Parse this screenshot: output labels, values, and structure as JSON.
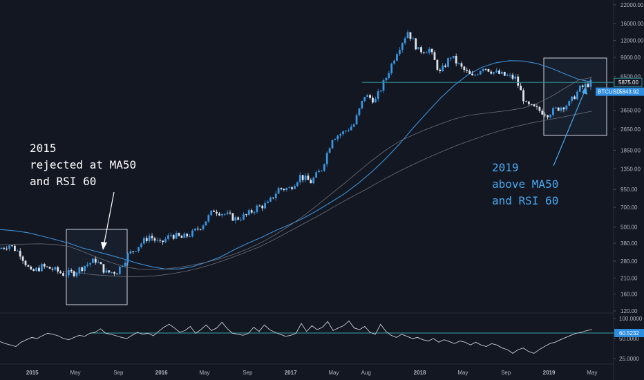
{
  "chart_data": {
    "type": "candlestick",
    "symbol": "BTCUSD",
    "scale": "log",
    "grid": false,
    "colors": {
      "background": "#131722",
      "up": "#3a94e0",
      "down": "#dfe3ea",
      "ma50": "#3d8fd4",
      "ma200": "#6a6f7a",
      "rsi": "#c9ccd3",
      "rsi_level": "#3aa6a6",
      "last_price_line": "#2f8f95",
      "blue_label": "#2d8de0",
      "annotation_white": "#ffffff",
      "annotation_blue": "#4aa8f0"
    },
    "price_axis": {
      "ticks": [
        22000,
        16000,
        12000,
        9000,
        6500,
        4850,
        3650,
        2650,
        1850,
        1350,
        950,
        700,
        500,
        380,
        280,
        210,
        160,
        120
      ],
      "tick_labels": [
        "22000.00",
        "16000.00",
        "12000.00",
        "9000.00",
        "6500.00",
        "4850.00",
        "3650.00",
        "2650.00",
        "1850.00",
        "1350.00",
        "950.00",
        "700.00",
        "500.00",
        "380.00",
        "280.00",
        "210.00",
        "160.00",
        "120.00"
      ],
      "range": [
        110,
        24000
      ]
    },
    "time_axis": {
      "labels": [
        "2015",
        "May",
        "Sep",
        "2016",
        "May",
        "Sep",
        "2017",
        "May",
        "Aug",
        "2018",
        "May",
        "Sep",
        "2019",
        "May"
      ],
      "range": [
        "2014-10",
        "2019-07"
      ]
    },
    "price_labels": [
      {
        "value": 5875.0,
        "text": "5875.00"
      },
      {
        "value": 5843.92,
        "text": "5843.92",
        "name": "BTCUSD"
      }
    ],
    "series": [
      {
        "kind": "candles",
        "x": [
          "2014-10",
          "2014-11",
          "2014-12",
          "2015-01",
          "2015-02",
          "2015-03",
          "2015-04",
          "2015-05",
          "2015-06",
          "2015-07",
          "2015-08",
          "2015-09",
          "2015-10",
          "2015-11",
          "2015-12",
          "2016-01",
          "2016-02",
          "2016-03",
          "2016-04",
          "2016-05",
          "2016-06",
          "2016-07",
          "2016-08",
          "2016-09",
          "2016-10",
          "2016-11",
          "2016-12",
          "2017-01",
          "2017-02",
          "2017-03",
          "2017-04",
          "2017-05",
          "2017-06",
          "2017-07",
          "2017-08",
          "2017-09",
          "2017-10",
          "2017-11",
          "2017-12",
          "2018-01",
          "2018-02",
          "2018-03",
          "2018-04",
          "2018-05",
          "2018-06",
          "2018-07",
          "2018-08",
          "2018-09",
          "2018-10",
          "2018-11",
          "2018-12",
          "2019-01",
          "2019-02",
          "2019-03",
          "2019-04",
          "2019-05"
        ],
        "close": [
          345,
          370,
          320,
          230,
          255,
          245,
          225,
          230,
          260,
          285,
          230,
          235,
          310,
          365,
          430,
          375,
          440,
          415,
          450,
          530,
          670,
          625,
          575,
          610,
          700,
          740,
          960,
          965,
          1190,
          1080,
          1350,
          2300,
          2500,
          2875,
          4700,
          4340,
          6400,
          10000,
          14000,
          10100,
          10300,
          6900,
          9200,
          7500,
          6400,
          7700,
          7000,
          6600,
          6300,
          4000,
          3700,
          3450,
          3800,
          4100,
          5300,
          5843.92
        ]
      },
      {
        "kind": "line",
        "name": "MA50",
        "x_range": [
          "2014-10",
          "2019-05"
        ],
        "values": [
          480,
          470,
          455,
          430,
          405,
          380,
          350,
          330,
          310,
          290,
          270,
          255,
          245,
          245,
          255,
          275,
          300,
          340,
          380,
          420,
          470,
          520,
          580,
          660,
          760,
          880,
          1050,
          1280,
          1600,
          2050,
          2700,
          3500,
          4500,
          5600,
          6700,
          7600,
          8200,
          8500,
          8450,
          8100,
          7500,
          6800,
          6200,
          5900
        ]
      },
      {
        "kind": "line",
        "name": "MA200",
        "x_range": [
          "2014-10",
          "2019-05"
        ],
        "values": [
          370,
          372,
          375,
          376,
          372,
          360,
          330,
          300,
          275,
          255,
          245,
          243,
          245,
          252,
          262,
          275,
          292,
          315,
          345,
          385,
          440,
          510,
          600,
          720,
          870,
          1050,
          1280,
          1550,
          1850,
          2150,
          2400,
          2650,
          2900,
          3150,
          3350,
          3450,
          3550,
          3650,
          3800,
          4100,
          4600,
          5300,
          6100,
          6400
        ]
      },
      {
        "kind": "line",
        "name": "MA200 (lower)",
        "x_range": [
          "2015-04",
          "2019-05"
        ],
        "values": [
          235,
          228,
          222,
          218,
          215,
          215,
          218,
          225,
          235,
          250,
          270,
          295,
          325,
          360,
          410,
          470,
          540,
          620,
          720,
          830,
          950,
          1100,
          1260,
          1430,
          1610,
          1800,
          2000,
          2200,
          2400,
          2600,
          2780,
          2950,
          3100,
          3250,
          3420,
          3600
        ]
      }
    ],
    "rsi": {
      "level_value": 60.5232,
      "level_label": "60.5232",
      "tick_values": [
        100,
        50,
        25
      ],
      "tick_labels": [
        "100.0000",
        "50.0000",
        "25.0000"
      ],
      "values": [
        45,
        42,
        40,
        38,
        44,
        48,
        52,
        50,
        55,
        60,
        58,
        55,
        50,
        48,
        52,
        56,
        54,
        60,
        62,
        70,
        60,
        58,
        55,
        52,
        50,
        56,
        62,
        58,
        60,
        55,
        64,
        74,
        82,
        72,
        62,
        66,
        76,
        60,
        68,
        80,
        66,
        72,
        88,
        70,
        60,
        58,
        56,
        60,
        74,
        64,
        80,
        68,
        62,
        58,
        54,
        56,
        60,
        84,
        64,
        78,
        68,
        74,
        90,
        66,
        72,
        78,
        92,
        72,
        68,
        76,
        62,
        58,
        82,
        64,
        56,
        52,
        58,
        54,
        50,
        52,
        48,
        46,
        50,
        44,
        48,
        45,
        42,
        46,
        44,
        40,
        44,
        40,
        38,
        42,
        40,
        36,
        34,
        30,
        34,
        36,
        32,
        30,
        34,
        38,
        42,
        44,
        48,
        52,
        56,
        60,
        62,
        66,
        68
      ]
    },
    "annotations": [
      {
        "lines": [
          "2015",
          "rejected at MA50",
          "and RSI 60"
        ],
        "color": "#ffffff"
      },
      {
        "lines": [
          "2019",
          "above MA50",
          "and RSI 60"
        ],
        "color": "#4aa8f0"
      }
    ]
  }
}
